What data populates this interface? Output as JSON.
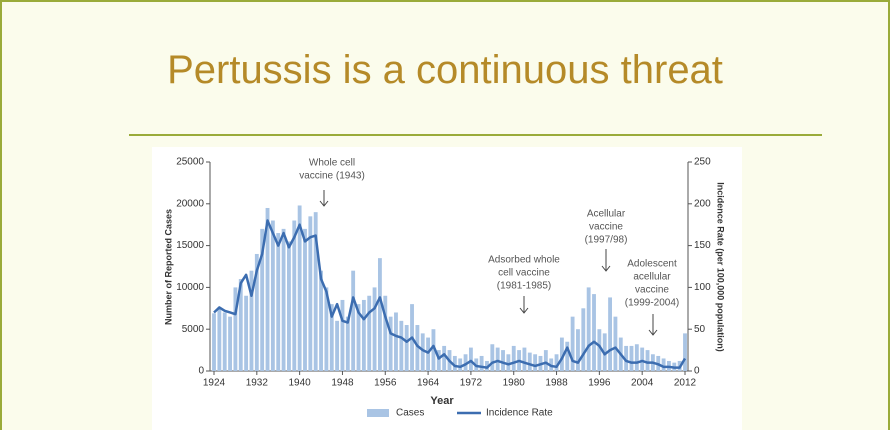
{
  "header": {
    "title": "Pertussis is a continuous threat"
  },
  "chart_data": {
    "type": "bar",
    "xlabel": "Year",
    "ylabel": "Number of Reported Cases",
    "y2label": "Incidence Rate (per 100,000 population)",
    "x": [
      1924,
      1925,
      1926,
      1927,
      1928,
      1929,
      1930,
      1931,
      1932,
      1933,
      1934,
      1935,
      1936,
      1937,
      1938,
      1939,
      1940,
      1941,
      1942,
      1943,
      1944,
      1945,
      1946,
      1947,
      1948,
      1949,
      1950,
      1951,
      1952,
      1953,
      1954,
      1955,
      1956,
      1957,
      1958,
      1959,
      1960,
      1961,
      1962,
      1963,
      1964,
      1965,
      1966,
      1967,
      1968,
      1969,
      1970,
      1971,
      1972,
      1973,
      1974,
      1975,
      1976,
      1977,
      1978,
      1979,
      1980,
      1981,
      1982,
      1983,
      1984,
      1985,
      1986,
      1987,
      1988,
      1989,
      1990,
      1991,
      1992,
      1993,
      1994,
      1995,
      1996,
      1997,
      1998,
      1999,
      2000,
      2001,
      2002,
      2003,
      2004,
      2005,
      2006,
      2007,
      2008,
      2009,
      2010,
      2011,
      2012
    ],
    "series": [
      {
        "name": "Cases",
        "type": "bar",
        "color": "#a9c4e4",
        "values": [
          6900,
          7500,
          7000,
          6500,
          10000,
          11000,
          9000,
          12000,
          14000,
          17000,
          19500,
          18000,
          16500,
          17000,
          15500,
          18000,
          19800,
          17000,
          18500,
          19000,
          12000,
          10000,
          8000,
          6000,
          8500,
          6500,
          12000,
          8000,
          8500,
          9000,
          10000,
          13500,
          9000,
          6500,
          7000,
          6000,
          5500,
          8000,
          5500,
          4500,
          4000,
          5000,
          2500,
          3000,
          2500,
          1800,
          1500,
          2000,
          2800,
          1500,
          1800,
          1200,
          3200,
          2800,
          2500,
          2000,
          3000,
          2500,
          2800,
          2200,
          2000,
          1800,
          2500,
          1500,
          2000,
          4000,
          3500,
          6500,
          5000,
          7500,
          10000,
          9200,
          5000,
          4500,
          8800,
          6500,
          4000,
          3000,
          3000,
          3200,
          2800,
          2500,
          2000,
          1800,
          1500,
          1200,
          1000,
          1200,
          4500
        ]
      },
      {
        "name": "Incidence Rate",
        "type": "line",
        "axis": "y2",
        "color": "#3c6db0",
        "values": [
          70,
          76,
          72,
          70,
          68,
          105,
          115,
          90,
          120,
          140,
          180,
          165,
          150,
          165,
          148,
          160,
          175,
          155,
          160,
          162,
          110,
          95,
          65,
          80,
          60,
          58,
          88,
          70,
          62,
          70,
          75,
          88,
          65,
          45,
          42,
          40,
          35,
          40,
          30,
          25,
          22,
          30,
          15,
          20,
          12,
          6,
          5,
          8,
          12,
          6,
          5,
          4,
          10,
          12,
          10,
          8,
          10,
          12,
          10,
          8,
          6,
          8,
          10,
          6,
          5,
          15,
          28,
          12,
          10,
          20,
          30,
          35,
          30,
          20,
          25,
          28,
          20,
          12,
          10,
          10,
          12,
          10,
          10,
          8,
          5,
          5,
          4,
          4,
          15
        ]
      }
    ],
    "xlim": [
      1924,
      2012
    ],
    "xticks": [
      1924,
      1932,
      1940,
      1948,
      1956,
      1964,
      1972,
      1980,
      1988,
      1996,
      2004,
      2012
    ],
    "ylim": [
      0,
      25000
    ],
    "yticks": [
      0,
      5000,
      10000,
      15000,
      20000,
      25000
    ],
    "y2lim": [
      0,
      250
    ],
    "y2ticks": [
      0,
      50,
      100,
      150,
      200,
      250
    ],
    "annotations": [
      {
        "lines": [
          "Whole cell",
          "vaccine (1943)"
        ]
      },
      {
        "lines": [
          "Adsorbed whole",
          "cell vaccine",
          "(1981-1985)"
        ]
      },
      {
        "lines": [
          "Acellular",
          "vaccine",
          "(1997/98)"
        ]
      },
      {
        "lines": [
          "Adolescent",
          "acellular",
          "vaccine",
          "(1999-2004)"
        ]
      }
    ]
  }
}
